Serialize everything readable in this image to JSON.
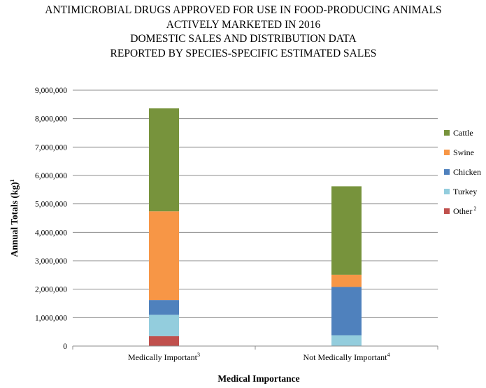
{
  "chart_data": {
    "type": "bar",
    "stacked": true,
    "title_lines": [
      "ANTIMICROBIAL DRUGS APPROVED FOR USE IN FOOD-PRODUCING ANIMALS",
      "ACTIVELY MARKETED IN 2016",
      "DOMESTIC SALES AND DISTRIBUTION DATA",
      "REPORTED BY SPECIES-SPECIFIC ESTIMATED SALES"
    ],
    "xlabel": "Medical Importance",
    "ylabel": "Annual Totals (kg)",
    "ylabel_superscript": "1",
    "categories": [
      "Medically Important",
      "Not Medically Important"
    ],
    "category_superscripts": [
      "3",
      "4"
    ],
    "ylim": [
      0,
      9000000
    ],
    "yticks": [
      0,
      1000000,
      2000000,
      3000000,
      4000000,
      5000000,
      6000000,
      7000000,
      8000000,
      9000000
    ],
    "ytick_labels": [
      "0",
      "1,000,000",
      "2,000,000",
      "3,000,000",
      "4,000,000",
      "5,000,000",
      "6,000,000",
      "7,000,000",
      "8,000,000",
      "9,000,000"
    ],
    "grid": true,
    "legend_position": "right",
    "series": [
      {
        "name": "Other",
        "superscript": "2",
        "color": "#C0504D",
        "values": [
          350000,
          0
        ]
      },
      {
        "name": "Turkey",
        "color": "#93CDDD",
        "values": [
          750000,
          380000
        ]
      },
      {
        "name": "Chicken",
        "color": "#4F81BD",
        "values": [
          520000,
          1700000
        ]
      },
      {
        "name": "Swine",
        "color": "#F79646",
        "values": [
          3120000,
          430000
        ]
      },
      {
        "name": "Cattle",
        "color": "#77933C",
        "values": [
          3620000,
          3110000
        ]
      }
    ]
  }
}
